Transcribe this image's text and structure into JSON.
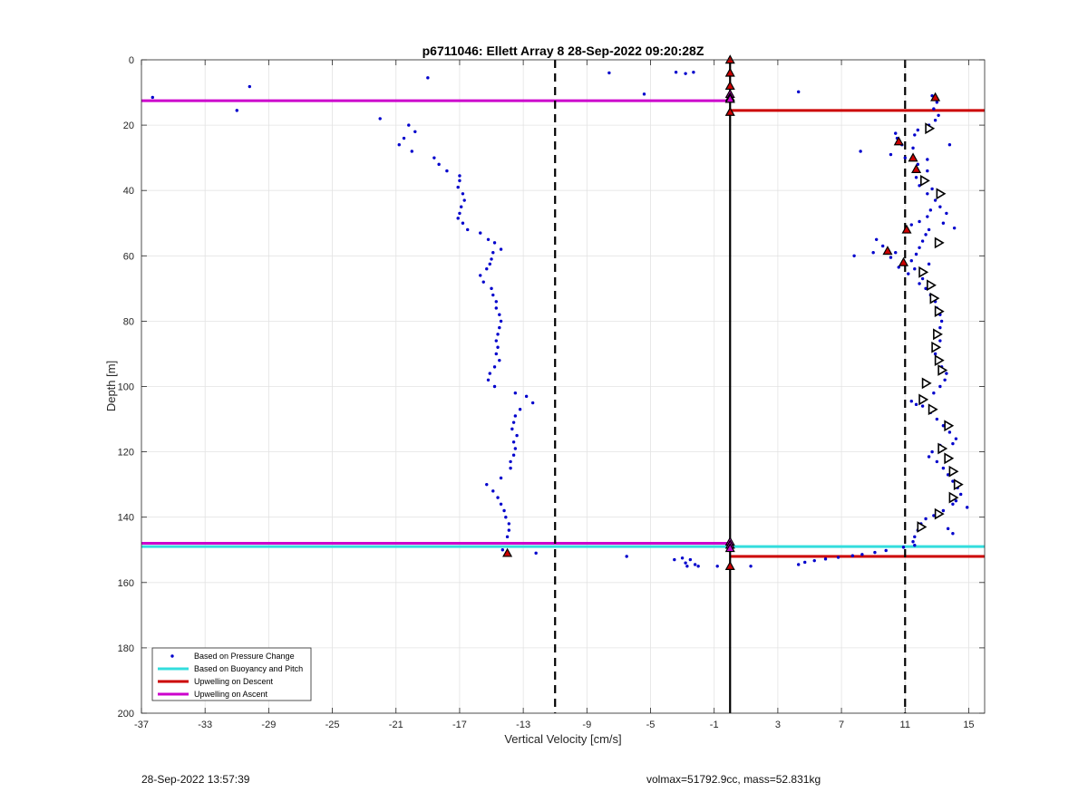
{
  "footer": {
    "timestamp": "28-Sep-2022 13:57:39",
    "info": "volmax=51792.9cc, mass=52.831kg"
  },
  "chart_data": {
    "type": "scatter",
    "title": "p6711046: Ellett Array 8 28-Sep-2022 09:20:28Z",
    "xlabel": "Vertical Velocity [cm/s]",
    "ylabel": "Depth [m]",
    "xlim": [
      -37,
      16
    ],
    "ylim": [
      0,
      200
    ],
    "y_reversed": true,
    "grid": true,
    "xticks": [
      -37,
      -33,
      -29,
      -25,
      -21,
      -17,
      -13,
      -9,
      -5,
      -1,
      3,
      7,
      11,
      15
    ],
    "yticks": [
      0,
      20,
      40,
      60,
      80,
      100,
      120,
      140,
      160,
      180,
      200
    ],
    "legend_position": "bottom-left",
    "legend": [
      {
        "label": "Based on Pressure Change",
        "color": "#0000cc",
        "style": "dot"
      },
      {
        "label": "Based on Buoyancy and Pitch",
        "color": "#33dddd",
        "style": "line"
      },
      {
        "label": "Upwelling on Descent",
        "color": "#cc0000",
        "style": "line"
      },
      {
        "label": "Upwelling on Ascent",
        "color": "#cc00cc",
        "style": "line"
      }
    ],
    "reference_lines": {
      "solid_x": 0,
      "dashed_x": [
        -11,
        11
      ]
    },
    "horizontal_segments": [
      {
        "series": "Upwelling on Ascent",
        "color": "#cc00cc",
        "y": 12.5,
        "x_from": -37,
        "x_to": 0
      },
      {
        "series": "Upwelling on Descent",
        "color": "#cc0000",
        "y": 15.5,
        "x_from": 0,
        "x_to": 16
      },
      {
        "series": "Upwelling on Ascent",
        "color": "#cc00cc",
        "y": 148,
        "x_from": -37,
        "x_to": 0
      },
      {
        "series": "Based on Buoyancy and Pitch",
        "color": "#33dddd",
        "y": 149,
        "x_from": -37,
        "x_to": 16
      },
      {
        "series": "Upwelling on Descent",
        "color": "#cc0000",
        "y": 152,
        "x_from": 0,
        "x_to": 16
      }
    ],
    "series": [
      {
        "name": "Based on Pressure Change",
        "color": "#0000cc",
        "marker": "dot",
        "points": [
          [
            -36.3,
            11.5
          ],
          [
            -30.2,
            8.2
          ],
          [
            -31,
            15.5
          ],
          [
            -19,
            5.5
          ],
          [
            -22,
            18
          ],
          [
            -7.6,
            4
          ],
          [
            -5.4,
            10.5
          ],
          [
            -3.4,
            3.8
          ],
          [
            -2.8,
            4.2
          ],
          [
            -2.3,
            3.8
          ],
          [
            4.3,
            9.8
          ],
          [
            -20.2,
            20
          ],
          [
            -19.8,
            22
          ],
          [
            -20.5,
            24
          ],
          [
            -20.8,
            26
          ],
          [
            -20,
            28
          ],
          [
            -18.6,
            30
          ],
          [
            -18.3,
            32
          ],
          [
            -17.8,
            34
          ],
          [
            -17,
            35.5
          ],
          [
            -17,
            37
          ],
          [
            -17.1,
            39
          ],
          [
            -16.8,
            41
          ],
          [
            -16.7,
            43
          ],
          [
            -16.9,
            45
          ],
          [
            -17,
            47
          ],
          [
            -17.1,
            48.5
          ],
          [
            -16.8,
            50
          ],
          [
            -16.5,
            52
          ],
          [
            -15.7,
            53
          ],
          [
            -15.2,
            55
          ],
          [
            -14.8,
            56
          ],
          [
            -14.4,
            58
          ],
          [
            -14.9,
            59
          ],
          [
            -15,
            61
          ],
          [
            -15.1,
            62.5
          ],
          [
            -15.3,
            64
          ],
          [
            -15.7,
            66
          ],
          [
            -15.5,
            68
          ],
          [
            -15,
            70
          ],
          [
            -14.9,
            72
          ],
          [
            -14.7,
            74
          ],
          [
            -14.7,
            76
          ],
          [
            -14.5,
            78
          ],
          [
            -14.4,
            80
          ],
          [
            -14.5,
            82
          ],
          [
            -14.6,
            84
          ],
          [
            -14.7,
            86
          ],
          [
            -14.6,
            88
          ],
          [
            -14.7,
            90
          ],
          [
            -14.5,
            92
          ],
          [
            -14.8,
            94
          ],
          [
            -15.1,
            96
          ],
          [
            -15.2,
            98
          ],
          [
            -14.8,
            100
          ],
          [
            -13.5,
            102
          ],
          [
            -12.8,
            103
          ],
          [
            -12.4,
            105
          ],
          [
            -13.2,
            107
          ],
          [
            -13.5,
            109
          ],
          [
            -13.6,
            111
          ],
          [
            -13.7,
            113
          ],
          [
            -13.4,
            115
          ],
          [
            -13.6,
            117
          ],
          [
            -13.5,
            119
          ],
          [
            -13.6,
            121
          ],
          [
            -13.8,
            123
          ],
          [
            -13.8,
            125
          ],
          [
            -14.4,
            128
          ],
          [
            -15.3,
            130
          ],
          [
            -14.9,
            132
          ],
          [
            -14.6,
            134
          ],
          [
            -14.4,
            136
          ],
          [
            -14.2,
            138
          ],
          [
            -14.1,
            140
          ],
          [
            -13.9,
            142
          ],
          [
            -13.9,
            144
          ],
          [
            -14,
            146
          ],
          [
            -14.3,
            150
          ],
          [
            -12.2,
            151
          ],
          [
            -6.5,
            152
          ],
          [
            -3.5,
            153
          ],
          [
            -3,
            152.5
          ],
          [
            -2.5,
            153
          ],
          [
            -2.8,
            154
          ],
          [
            -2.2,
            154.5
          ],
          [
            -2.7,
            155
          ],
          [
            -2,
            155
          ],
          [
            -0.8,
            155
          ],
          [
            1.3,
            155
          ],
          [
            4.3,
            154.5
          ],
          [
            4.7,
            153.8
          ],
          [
            5.3,
            153.3
          ],
          [
            6,
            152.8
          ],
          [
            6.8,
            152.3
          ],
          [
            7.7,
            151.8
          ],
          [
            8.3,
            151.4
          ],
          [
            9.1,
            150.8
          ],
          [
            9.8,
            150.2
          ],
          [
            10.9,
            149.2
          ],
          [
            11.6,
            148.6
          ],
          [
            12.7,
            11
          ],
          [
            13,
            13
          ],
          [
            12.8,
            15
          ],
          [
            13.1,
            17
          ],
          [
            12.9,
            18.5
          ],
          [
            12.5,
            20
          ],
          [
            11.8,
            21.5
          ],
          [
            11.6,
            23
          ],
          [
            10.4,
            22.5
          ],
          [
            10.5,
            24
          ],
          [
            10.8,
            26
          ],
          [
            11.5,
            27
          ],
          [
            13.8,
            26
          ],
          [
            8.2,
            28
          ],
          [
            10.1,
            29
          ],
          [
            11,
            30
          ],
          [
            12.4,
            30.5
          ],
          [
            11.8,
            32
          ],
          [
            11.6,
            34
          ],
          [
            12.4,
            34
          ],
          [
            11.7,
            36
          ],
          [
            12.2,
            37
          ],
          [
            11.9,
            38.5
          ],
          [
            12.7,
            39.5
          ],
          [
            12.4,
            41
          ],
          [
            12.9,
            43
          ],
          [
            13.2,
            45
          ],
          [
            12.6,
            46
          ],
          [
            13.6,
            47
          ],
          [
            12.4,
            48
          ],
          [
            11.9,
            49.5
          ],
          [
            11.4,
            50.5
          ],
          [
            13.4,
            50
          ],
          [
            14.1,
            51.5
          ],
          [
            12.5,
            52
          ],
          [
            12.3,
            53.5
          ],
          [
            9.2,
            55
          ],
          [
            12.1,
            55.5
          ],
          [
            9.6,
            57
          ],
          [
            11.9,
            57.5
          ],
          [
            9,
            59
          ],
          [
            10.4,
            59
          ],
          [
            11.7,
            59.5
          ],
          [
            7.8,
            60
          ],
          [
            10.1,
            60.5
          ],
          [
            11.4,
            61.5
          ],
          [
            12.5,
            62.5
          ],
          [
            10.6,
            63.5
          ],
          [
            11.6,
            64
          ],
          [
            11.2,
            65.5
          ],
          [
            12.1,
            67
          ],
          [
            11.9,
            68.5
          ],
          [
            12.3,
            70
          ],
          [
            12.6,
            72
          ],
          [
            12.9,
            74
          ],
          [
            13,
            76
          ],
          [
            13.2,
            78
          ],
          [
            13.3,
            80
          ],
          [
            13.2,
            82
          ],
          [
            13.1,
            84
          ],
          [
            13.2,
            86
          ],
          [
            13,
            88
          ],
          [
            12.9,
            90
          ],
          [
            13.1,
            92
          ],
          [
            13.3,
            94
          ],
          [
            13.6,
            96
          ],
          [
            13.5,
            98
          ],
          [
            13.2,
            100
          ],
          [
            12.8,
            102
          ],
          [
            12.2,
            104
          ],
          [
            11.7,
            105.5
          ],
          [
            11.4,
            104.5
          ],
          [
            12.1,
            106
          ],
          [
            12.6,
            108
          ],
          [
            13,
            110
          ],
          [
            13.4,
            112
          ],
          [
            13.8,
            114
          ],
          [
            14.2,
            116
          ],
          [
            14,
            117.5
          ],
          [
            13.2,
            118
          ],
          [
            12.7,
            120
          ],
          [
            12.5,
            121.5
          ],
          [
            13,
            123
          ],
          [
            13.4,
            125
          ],
          [
            13.7,
            127
          ],
          [
            14,
            129
          ],
          [
            14.3,
            131
          ],
          [
            14.5,
            133
          ],
          [
            14.2,
            135
          ],
          [
            14,
            136
          ],
          [
            14.9,
            137
          ],
          [
            13.4,
            138
          ],
          [
            12.8,
            139.5
          ],
          [
            12.3,
            140.5
          ],
          [
            12,
            142
          ],
          [
            11.8,
            144
          ],
          [
            13.7,
            143.5
          ],
          [
            14,
            145
          ],
          [
            11.6,
            146
          ],
          [
            11.5,
            147.5
          ]
        ]
      },
      {
        "name": "Upwelling on Descent",
        "color": "#cc0000",
        "marker": "filled-triangle",
        "points": [
          [
            0,
            0
          ],
          [
            0,
            4
          ],
          [
            0,
            8
          ],
          [
            0,
            12
          ],
          [
            0,
            16
          ],
          [
            12.9,
            11.5
          ],
          [
            10.6,
            25
          ],
          [
            11.5,
            30
          ],
          [
            11.7,
            33.5
          ],
          [
            11.1,
            52
          ],
          [
            9.9,
            58.5
          ],
          [
            10.9,
            62
          ],
          [
            0,
            155
          ],
          [
            -14,
            151
          ]
        ]
      },
      {
        "name": "Upwelling on Ascent",
        "color": "#000000",
        "marker": "open-triangle",
        "points": [
          [
            12.5,
            21
          ],
          [
            12.2,
            37
          ],
          [
            13.2,
            41
          ],
          [
            13.1,
            56
          ],
          [
            12.1,
            65
          ],
          [
            12.6,
            69
          ],
          [
            12.8,
            73
          ],
          [
            13.1,
            77
          ],
          [
            13,
            84
          ],
          [
            12.9,
            88
          ],
          [
            13.1,
            92
          ],
          [
            13.3,
            95
          ],
          [
            12.3,
            99
          ],
          [
            12.1,
            104
          ],
          [
            12.7,
            107
          ],
          [
            13.7,
            112
          ],
          [
            13.3,
            119
          ],
          [
            13.7,
            122
          ],
          [
            14,
            126
          ],
          [
            14.3,
            130
          ],
          [
            14,
            134
          ],
          [
            13.1,
            139
          ],
          [
            12,
            143
          ]
        ]
      },
      {
        "name": "Upwelling on Ascent",
        "color": "#cc00cc",
        "marker": "filled-triangle",
        "points": [
          [
            0,
            10.5
          ],
          [
            0,
            11.5
          ],
          [
            0,
            12
          ],
          [
            0,
            147.5
          ],
          [
            0,
            148.5
          ],
          [
            0,
            149.5
          ]
        ]
      }
    ]
  }
}
